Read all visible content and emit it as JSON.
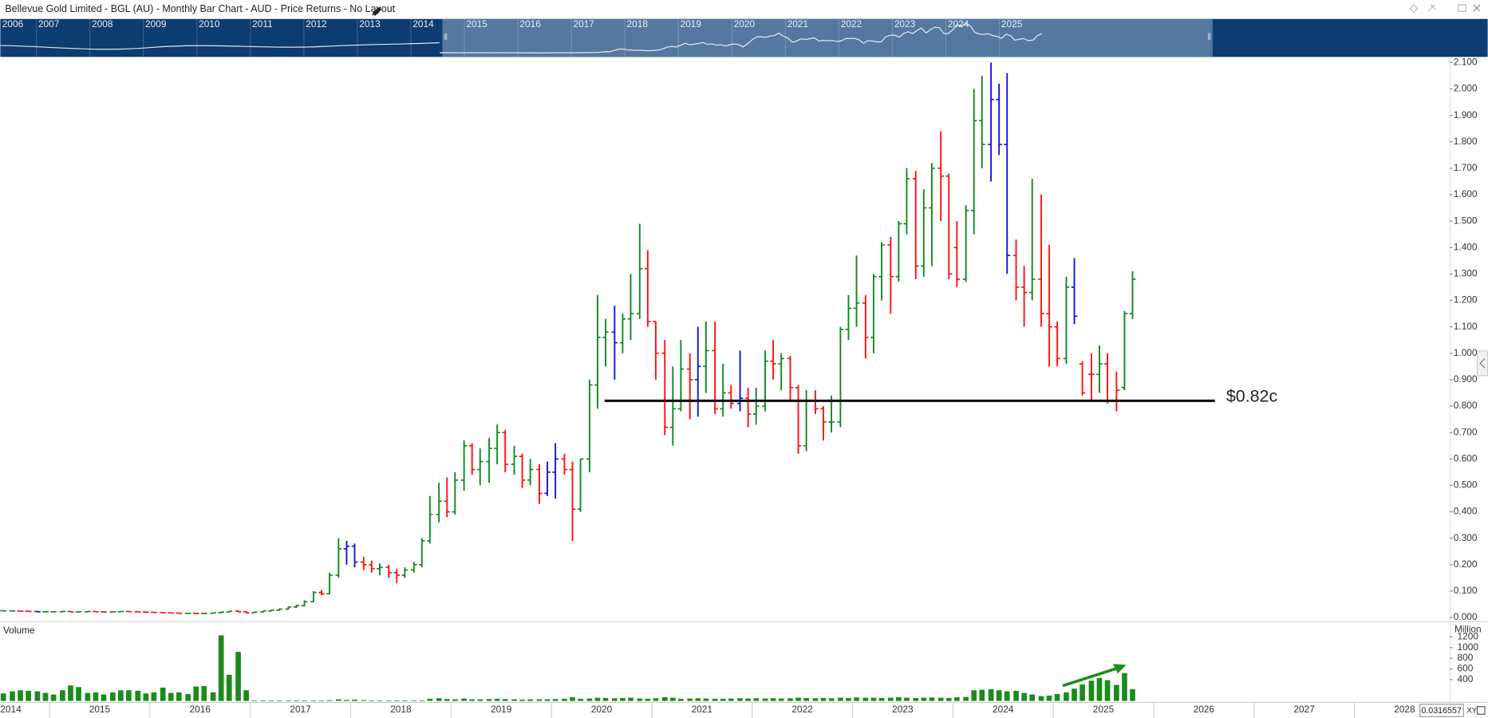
{
  "header": {
    "title": "Bellevue Gold Limited - BGL (AU) - Monthly Bar Chart - AUD - Price Returns - No Layout"
  },
  "navigator": {
    "years": [
      "2006",
      "2007",
      "2008",
      "2009",
      "2010",
      "2011",
      "2012",
      "2013",
      "2014",
      "2015",
      "2016",
      "2017",
      "2018",
      "2019",
      "2020",
      "2021",
      "2022",
      "2023",
      "2024",
      "2025"
    ]
  },
  "chart_data": {
    "type": "ohlc",
    "xlim": [
      2014.51,
      2028.95
    ],
    "xticks": [
      2014,
      2015,
      2016,
      2017,
      2018,
      2019,
      2020,
      2021,
      2022,
      2023,
      2024,
      2025,
      2026,
      2027,
      2028
    ],
    "ylim": [
      -0.014,
      2.114
    ],
    "yticks": [
      {
        "value": 0,
        "label": "0.000"
      },
      {
        "value": 0.1,
        "label": "0.100"
      },
      {
        "value": 0.2,
        "label": "0.200"
      },
      {
        "value": 0.3,
        "label": "0.300"
      },
      {
        "value": 0.4,
        "label": "0.400"
      },
      {
        "value": 0.5,
        "label": "0.500"
      },
      {
        "value": 0.6,
        "label": "0.600"
      },
      {
        "value": 0.7,
        "label": "0.700"
      },
      {
        "value": 0.8,
        "label": "0.800"
      },
      {
        "value": 0.9,
        "label": "0.900"
      },
      {
        "value": 1.0,
        "label": "1.000"
      },
      {
        "value": 1.1,
        "label": "1.100"
      },
      {
        "value": 1.2,
        "label": "1.200"
      },
      {
        "value": 1.3,
        "label": "1.300"
      },
      {
        "value": 1.4,
        "label": "1.400"
      },
      {
        "value": 1.5,
        "label": "1.500"
      },
      {
        "value": 1.6,
        "label": "1.600"
      },
      {
        "value": 1.7,
        "label": "1.700"
      },
      {
        "value": 1.8,
        "label": "1.800"
      },
      {
        "value": 1.9,
        "label": "1.900"
      },
      {
        "value": 2.0,
        "label": "2.000"
      },
      {
        "value": 2.1,
        "label": "2.100"
      }
    ],
    "x": [
      2014.54,
      2014.63,
      2014.71,
      2014.79,
      2014.88,
      2014.96,
      2015.04,
      2015.13,
      2015.21,
      2015.29,
      2015.38,
      2015.46,
      2015.54,
      2015.63,
      2015.71,
      2015.79,
      2015.88,
      2015.96,
      2016.04,
      2016.13,
      2016.21,
      2016.29,
      2016.38,
      2016.46,
      2016.54,
      2016.63,
      2016.71,
      2016.79,
      2016.88,
      2016.96,
      2017.04,
      2017.13,
      2017.21,
      2017.29,
      2017.38,
      2017.46,
      2017.54,
      2017.63,
      2017.71,
      2017.79,
      2017.88,
      2017.96,
      2018.04,
      2018.13,
      2018.21,
      2018.29,
      2018.38,
      2018.46,
      2018.54,
      2018.63,
      2018.71,
      2018.79,
      2018.88,
      2018.96,
      2019.04,
      2019.13,
      2019.21,
      2019.29,
      2019.38,
      2019.46,
      2019.54,
      2019.63,
      2019.71,
      2019.79,
      2019.88,
      2019.96,
      2020.04,
      2020.13,
      2020.21,
      2020.29,
      2020.38,
      2020.46,
      2020.54,
      2020.63,
      2020.71,
      2020.79,
      2020.88,
      2020.96,
      2021.04,
      2021.13,
      2021.21,
      2021.29,
      2021.38,
      2021.46,
      2021.54,
      2021.63,
      2021.71,
      2021.79,
      2021.88,
      2021.96,
      2022.04,
      2022.13,
      2022.21,
      2022.29,
      2022.38,
      2022.46,
      2022.54,
      2022.63,
      2022.71,
      2022.79,
      2022.88,
      2022.96,
      2023.04,
      2023.13,
      2023.21,
      2023.29,
      2023.38,
      2023.46,
      2023.54,
      2023.63,
      2023.71,
      2023.79,
      2023.88,
      2023.96,
      2024.04,
      2024.13,
      2024.21,
      2024.29,
      2024.38,
      2024.46,
      2024.54,
      2024.63,
      2024.71,
      2024.79,
      2024.88,
      2024.96,
      2025.04,
      2025.13,
      2025.21,
      2025.29,
      2025.38,
      2025.46,
      2025.54,
      2025.63,
      2025.71,
      2025.79
    ],
    "ohlc": [
      [
        0.026,
        0.028,
        0.024,
        0.025
      ],
      [
        0.025,
        0.027,
        0.023,
        0.025
      ],
      [
        0.025,
        0.026,
        0.023,
        0.024
      ],
      [
        0.024,
        0.026,
        0.022,
        0.023
      ],
      [
        0.023,
        0.025,
        0.021,
        0.022
      ],
      [
        0.022,
        0.024,
        0.02,
        0.022
      ],
      [
        0.022,
        0.024,
        0.02,
        0.022
      ],
      [
        0.022,
        0.025,
        0.02,
        0.023
      ],
      [
        0.023,
        0.025,
        0.021,
        0.021
      ],
      [
        0.021,
        0.023,
        0.019,
        0.022
      ],
      [
        0.022,
        0.024,
        0.02,
        0.023
      ],
      [
        0.023,
        0.025,
        0.021,
        0.022
      ],
      [
        0.022,
        0.024,
        0.02,
        0.021
      ],
      [
        0.021,
        0.023,
        0.019,
        0.022
      ],
      [
        0.022,
        0.024,
        0.021,
        0.023
      ],
      [
        0.023,
        0.025,
        0.021,
        0.022
      ],
      [
        0.022,
        0.024,
        0.02,
        0.021
      ],
      [
        0.021,
        0.023,
        0.019,
        0.02
      ],
      [
        0.02,
        0.022,
        0.018,
        0.019
      ],
      [
        0.019,
        0.021,
        0.017,
        0.018
      ],
      [
        0.018,
        0.02,
        0.016,
        0.017
      ],
      [
        0.017,
        0.019,
        0.015,
        0.016
      ],
      [
        0.016,
        0.018,
        0.015,
        0.016
      ],
      [
        0.016,
        0.018,
        0.014,
        0.015
      ],
      [
        0.015,
        0.017,
        0.014,
        0.016
      ],
      [
        0.016,
        0.019,
        0.015,
        0.018
      ],
      [
        0.018,
        0.022,
        0.016,
        0.021
      ],
      [
        0.021,
        0.026,
        0.019,
        0.024
      ],
      [
        0.024,
        0.028,
        0.021,
        0.022
      ],
      [
        0.022,
        0.024,
        0.016,
        0.018
      ],
      [
        0.018,
        0.022,
        0.017,
        0.021
      ],
      [
        0.021,
        0.026,
        0.02,
        0.025
      ],
      [
        0.025,
        0.03,
        0.023,
        0.028
      ],
      [
        0.028,
        0.034,
        0.026,
        0.032
      ],
      [
        0.032,
        0.042,
        0.03,
        0.04
      ],
      [
        0.04,
        0.048,
        0.036,
        0.045
      ],
      [
        0.045,
        0.065,
        0.042,
        0.06
      ],
      [
        0.06,
        0.1,
        0.058,
        0.095
      ],
      [
        0.095,
        0.105,
        0.085,
        0.09
      ],
      [
        0.09,
        0.17,
        0.088,
        0.16
      ],
      [
        0.16,
        0.3,
        0.15,
        0.26
      ],
      [
        0.26,
        0.29,
        0.2,
        0.27
      ],
      [
        0.27,
        0.28,
        0.19,
        0.21
      ],
      [
        0.21,
        0.23,
        0.18,
        0.2
      ],
      [
        0.2,
        0.215,
        0.17,
        0.185
      ],
      [
        0.185,
        0.205,
        0.16,
        0.19
      ],
      [
        0.19,
        0.2,
        0.15,
        0.17
      ],
      [
        0.17,
        0.185,
        0.13,
        0.16
      ],
      [
        0.16,
        0.19,
        0.15,
        0.18
      ],
      [
        0.18,
        0.21,
        0.17,
        0.2
      ],
      [
        0.2,
        0.3,
        0.19,
        0.29
      ],
      [
        0.29,
        0.46,
        0.28,
        0.39
      ],
      [
        0.39,
        0.51,
        0.36,
        0.44
      ],
      [
        0.44,
        0.53,
        0.38,
        0.4
      ],
      [
        0.4,
        0.55,
        0.39,
        0.52
      ],
      [
        0.52,
        0.67,
        0.48,
        0.65
      ],
      [
        0.65,
        0.66,
        0.54,
        0.56
      ],
      [
        0.56,
        0.64,
        0.5,
        0.59
      ],
      [
        0.59,
        0.68,
        0.51,
        0.64
      ],
      [
        0.64,
        0.73,
        0.58,
        0.7
      ],
      [
        0.7,
        0.71,
        0.55,
        0.58
      ],
      [
        0.58,
        0.65,
        0.54,
        0.61
      ],
      [
        0.61,
        0.62,
        0.49,
        0.52
      ],
      [
        0.52,
        0.6,
        0.5,
        0.56
      ],
      [
        0.56,
        0.58,
        0.43,
        0.47
      ],
      [
        0.47,
        0.59,
        0.46,
        0.55
      ],
      [
        0.55,
        0.66,
        0.45,
        0.6
      ],
      [
        0.6,
        0.62,
        0.54,
        0.56
      ],
      [
        0.56,
        0.59,
        0.29,
        0.41
      ],
      [
        0.41,
        0.6,
        0.4,
        0.6
      ],
      [
        0.6,
        0.9,
        0.55,
        0.88
      ],
      [
        0.88,
        1.22,
        0.79,
        1.06
      ],
      [
        1.06,
        1.13,
        0.95,
        1.08
      ],
      [
        1.08,
        1.18,
        0.9,
        1.04
      ],
      [
        1.04,
        1.15,
        1.0,
        1.13
      ],
      [
        1.13,
        1.3,
        1.05,
        1.15
      ],
      [
        1.15,
        1.49,
        1.13,
        1.32
      ],
      [
        1.32,
        1.39,
        1.1,
        1.12
      ],
      [
        1.12,
        1.12,
        0.9,
        1.0
      ],
      [
        1.0,
        1.05,
        0.69,
        0.72
      ],
      [
        0.72,
        0.95,
        0.65,
        0.79
      ],
      [
        0.79,
        1.05,
        0.78,
        0.94
      ],
      [
        0.94,
        1.0,
        0.75,
        0.9
      ],
      [
        0.9,
        1.1,
        0.76,
        0.95
      ],
      [
        0.95,
        1.12,
        0.85,
        1.01
      ],
      [
        1.01,
        1.12,
        0.77,
        0.79
      ],
      [
        0.79,
        0.96,
        0.76,
        0.85
      ],
      [
        0.85,
        0.88,
        0.79,
        0.81
      ],
      [
        0.81,
        1.01,
        0.78,
        0.83
      ],
      [
        0.83,
        0.87,
        0.72,
        0.77
      ],
      [
        0.77,
        0.87,
        0.73,
        0.8
      ],
      [
        0.8,
        1.01,
        0.78,
        0.97
      ],
      [
        0.97,
        1.05,
        0.9,
        0.96
      ],
      [
        0.96,
        1.0,
        0.86,
        0.98
      ],
      [
        0.98,
        0.99,
        0.82,
        0.87
      ],
      [
        0.87,
        0.88,
        0.62,
        0.65
      ],
      [
        0.65,
        0.86,
        0.63,
        0.82
      ],
      [
        0.82,
        0.86,
        0.77,
        0.79
      ],
      [
        0.79,
        0.8,
        0.67,
        0.74
      ],
      [
        0.74,
        0.84,
        0.7,
        0.74
      ],
      [
        0.74,
        1.1,
        0.72,
        1.09
      ],
      [
        1.09,
        1.22,
        1.05,
        1.17
      ],
      [
        1.17,
        1.37,
        1.1,
        1.19
      ],
      [
        1.19,
        1.22,
        0.98,
        1.06
      ],
      [
        1.06,
        1.3,
        1.0,
        1.29
      ],
      [
        1.29,
        1.42,
        1.2,
        1.41
      ],
      [
        1.41,
        1.44,
        1.15,
        1.29
      ],
      [
        1.29,
        1.5,
        1.27,
        1.49
      ],
      [
        1.49,
        1.7,
        1.45,
        1.66
      ],
      [
        1.66,
        1.69,
        1.28,
        1.33
      ],
      [
        1.33,
        1.62,
        1.29,
        1.55
      ],
      [
        1.55,
        1.72,
        1.33,
        1.7
      ],
      [
        1.7,
        1.84,
        1.5,
        1.67
      ],
      [
        1.67,
        1.68,
        1.28,
        1.3
      ],
      [
        1.4,
        1.5,
        1.25,
        1.28
      ],
      [
        1.28,
        1.56,
        1.27,
        1.54
      ],
      [
        1.54,
        2.0,
        1.45,
        1.88
      ],
      [
        1.88,
        2.05,
        1.7,
        1.79
      ],
      [
        1.79,
        2.1,
        1.65,
        1.96
      ],
      [
        1.96,
        2.02,
        1.75,
        1.79
      ],
      [
        1.79,
        2.06,
        1.3,
        1.37
      ],
      [
        1.37,
        1.43,
        1.2,
        1.25
      ],
      [
        1.25,
        1.33,
        1.1,
        1.23
      ],
      [
        1.23,
        1.66,
        1.2,
        1.28
      ],
      [
        1.28,
        1.6,
        1.1,
        1.15
      ],
      [
        1.15,
        1.41,
        0.95,
        1.1
      ],
      [
        1.1,
        1.12,
        0.95,
        0.98
      ],
      [
        0.98,
        1.29,
        0.96,
        1.25
      ],
      [
        1.25,
        1.36,
        1.11,
        1.14
      ],
      [
        0.96,
        0.97,
        0.84,
        0.85
      ],
      [
        0.92,
        1.0,
        0.82,
        0.92
      ],
      [
        0.92,
        1.03,
        0.85,
        0.96
      ],
      [
        0.96,
        1.0,
        0.81,
        0.82
      ],
      [
        0.82,
        0.93,
        0.78,
        0.86
      ],
      [
        0.87,
        1.16,
        0.86,
        1.15
      ],
      [
        1.15,
        1.31,
        1.13,
        1.28
      ]
    ],
    "colors": [
      "#182",
      "#182",
      "#f11",
      "#f11",
      "#11e",
      "#182",
      "#182",
      "#182",
      "#f11",
      "#182",
      "#182",
      "#f11",
      "#f11",
      "#182",
      "#182",
      "#f11",
      "#f11",
      "#f11",
      "#f11",
      "#f11",
      "#f11",
      "#f11",
      "#182",
      "#f11",
      "#182",
      "#182",
      "#182",
      "#182",
      "#f11",
      "#f11",
      "#182",
      "#182",
      "#182",
      "#182",
      "#182",
      "#182",
      "#182",
      "#182",
      "#f11",
      "#182",
      "#182",
      "#11e",
      "#11e",
      "#f11",
      "#f11",
      "#182",
      "#f11",
      "#f11",
      "#182",
      "#182",
      "#182",
      "#182",
      "#182",
      "#f11",
      "#182",
      "#182",
      "#f11",
      "#182",
      "#182",
      "#182",
      "#f11",
      "#182",
      "#f11",
      "#182",
      "#f11",
      "#11e",
      "#11e",
      "#f11",
      "#f11",
      "#182",
      "#182",
      "#182",
      "#182",
      "#11e",
      "#182",
      "#182",
      "#182",
      "#f11",
      "#f11",
      "#f11",
      "#182",
      "#182",
      "#f11",
      "#11e",
      "#182",
      "#f11",
      "#182",
      "#f11",
      "#11e",
      "#f11",
      "#182",
      "#182",
      "#f11",
      "#182",
      "#f11",
      "#f11",
      "#182",
      "#f11",
      "#f11",
      "#182",
      "#182",
      "#182",
      "#182",
      "#f11",
      "#182",
      "#182",
      "#f11",
      "#182",
      "#182",
      "#f11",
      "#182",
      "#182",
      "#f11",
      "#f11",
      "#f11",
      "#182",
      "#182",
      "#182",
      "#11e",
      "#11e",
      "#11e",
      "#f11",
      "#f11",
      "#182",
      "#f11",
      "#f11",
      "#f11",
      "#182",
      "#11e",
      "#f11",
      "#f11",
      "#182",
      "#f11",
      "#f11",
      "#182",
      "#182"
    ],
    "hline": {
      "value": 0.82,
      "x": [
        2020.53,
        2026.61
      ],
      "label": "$0.82c",
      "color": "#000000"
    },
    "volume": {
      "label": "Volume",
      "unit": "Million",
      "color": "#1a8c1a",
      "ylim": [
        0,
        1440
      ],
      "yticks": [
        400,
        600,
        800,
        1000,
        1200
      ],
      "values": [
        140,
        180,
        200,
        190,
        180,
        150,
        120,
        200,
        290,
        260,
        150,
        160,
        120,
        160,
        200,
        200,
        190,
        140,
        160,
        250,
        150,
        160,
        130,
        270,
        280,
        160,
        1230,
        490,
        920,
        200,
        5,
        5,
        5,
        5,
        5,
        5,
        8,
        10,
        10,
        15,
        30,
        20,
        25,
        15,
        10,
        10,
        10,
        8,
        8,
        10,
        12,
        40,
        50,
        35,
        30,
        45,
        30,
        30,
        35,
        40,
        35,
        30,
        25,
        30,
        30,
        30,
        35,
        40,
        70,
        40,
        45,
        60,
        55,
        50,
        55,
        60,
        45,
        40,
        50,
        70,
        60,
        40,
        45,
        50,
        45,
        40,
        40,
        45,
        50,
        45,
        50,
        45,
        50,
        45,
        50,
        60,
        55,
        50,
        55,
        50,
        60,
        55,
        65,
        60,
        60,
        55,
        60,
        70,
        60,
        55,
        60,
        65,
        60,
        55,
        70,
        75,
        200,
        210,
        220,
        200,
        180,
        190,
        150,
        120,
        90,
        100,
        130,
        160,
        230,
        310,
        380,
        430,
        390,
        300,
        520,
        220
      ]
    },
    "cursor_value": "0.0316557",
    "xy_label": "XY"
  }
}
